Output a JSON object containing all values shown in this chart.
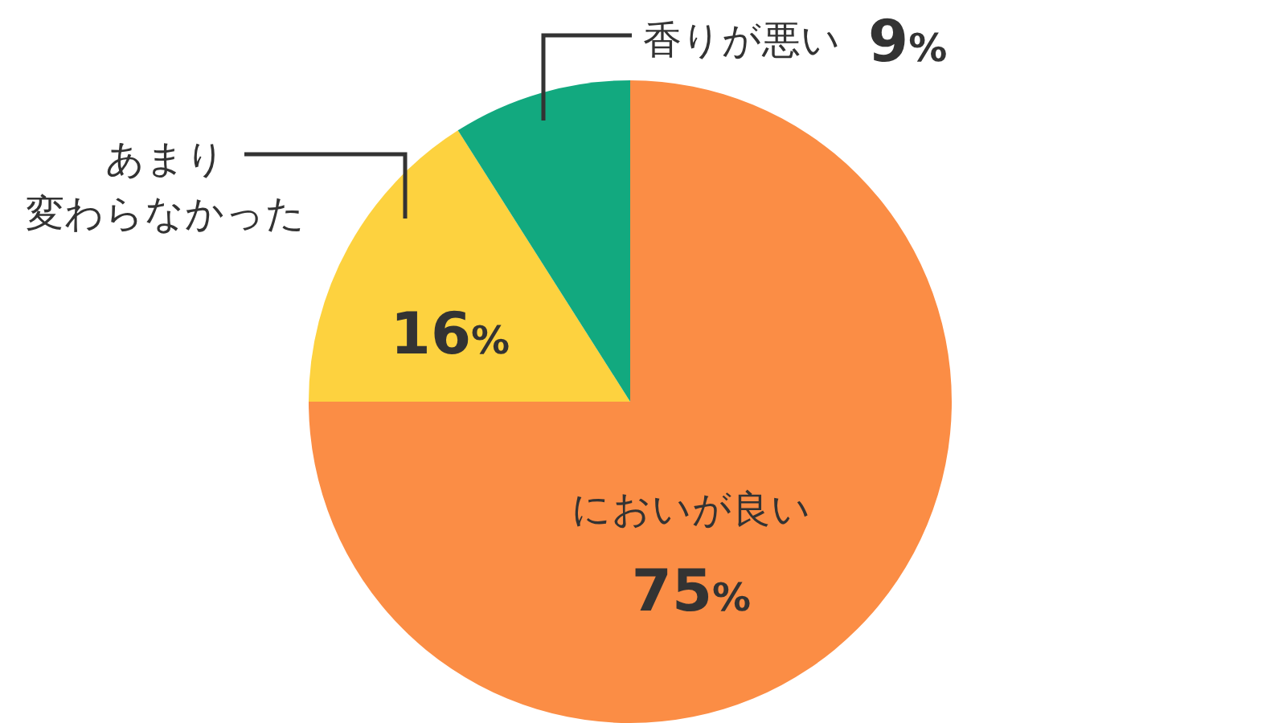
{
  "chart_data": {
    "type": "pie",
    "categories": [
      "においが良い",
      "あまり変わらなかった",
      "香りが悪い"
    ],
    "values": [
      75,
      16,
      9
    ],
    "colors": [
      "#fb8d45",
      "#fdd23f",
      "#12a97f"
    ],
    "value_labels": [
      "75%",
      "16%",
      "9%"
    ]
  }
}
